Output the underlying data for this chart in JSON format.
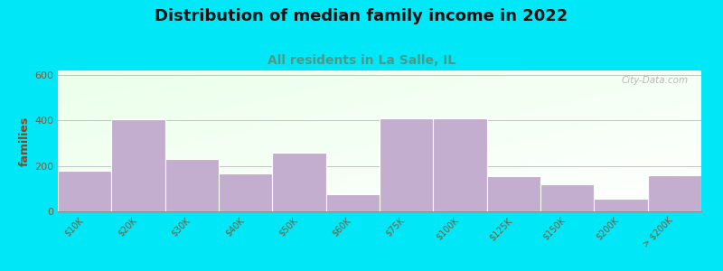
{
  "title": "Distribution of median family income in 2022",
  "subtitle": "All residents in La Salle, IL",
  "categories": [
    "$10K",
    "$20K",
    "$30K",
    "$40K",
    "$50K",
    "$60K",
    "$75K",
    "$100K",
    "$125K",
    "$150K",
    "$200K",
    "> $200K"
  ],
  "values": [
    180,
    405,
    230,
    165,
    260,
    75,
    410,
    410,
    155,
    120,
    55,
    160
  ],
  "bar_color": "#c4aed0",
  "bar_edge_color": "#ffffff",
  "ylabel": "families",
  "ylim": [
    0,
    620
  ],
  "yticks": [
    0,
    200,
    400,
    600
  ],
  "background_outer": "#00e8f8",
  "title_fontsize": 13,
  "subtitle_fontsize": 10,
  "subtitle_color": "#4a9a8a",
  "ylabel_color": "#7a4a2a",
  "tick_color": "#7a5a3a",
  "watermark": "City-Data.com"
}
